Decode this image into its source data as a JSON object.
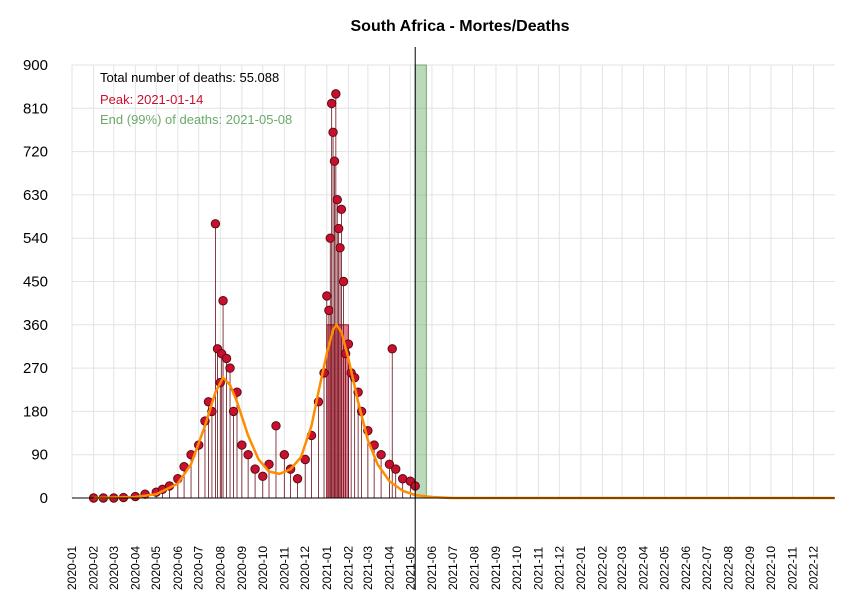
{
  "chart_data": {
    "type": "scatter",
    "title": "South Africa - Mortes/Deaths",
    "xlabel": "",
    "ylabel": "",
    "ylim": [
      0,
      900
    ],
    "xlim": [
      "2020-01-01",
      "2023-01-01"
    ],
    "y_ticks": [
      "0",
      "90",
      "180",
      "270",
      "360",
      "450",
      "540",
      "630",
      "720",
      "810",
      "900"
    ],
    "x_ticks": [
      "2020-01",
      "2020-02",
      "2020-03",
      "2020-04",
      "2020-05",
      "2020-06",
      "2020-07",
      "2020-08",
      "2020-09",
      "2020-10",
      "2020-11",
      "2020-12",
      "2021-01",
      "2021-02",
      "2021-03",
      "2021-04",
      "2021-05",
      "2021-06",
      "2021-07",
      "2021-08",
      "2021-09",
      "2021-10",
      "2021-11",
      "2021-12",
      "2022-01",
      "2022-02",
      "2022-03",
      "2022-04",
      "2022-05",
      "2022-06",
      "2022-07",
      "2022-08",
      "2022-09",
      "2022-10",
      "2022-11",
      "2022-12"
    ],
    "grid": true,
    "annotations": {
      "total": "Total number of deaths: 55.088",
      "peak": "Peak: 2021-01-14",
      "end": "End (99%) of deaths: 2021-05-08"
    },
    "vertical_line_date": "2021-05-08",
    "peak_band": [
      "2021-01-01",
      "2021-02-01"
    ],
    "peak_band_top": 360,
    "end_band": [
      "2021-05-08",
      "2021-05-24"
    ],
    "series": [
      {
        "type": "points",
        "color": "#c8102e",
        "x": [
          "2020-02-01",
          "2020-02-15",
          "2020-03-01",
          "2020-03-15",
          "2020-04-01",
          "2020-04-15",
          "2020-05-01",
          "2020-05-10",
          "2020-05-20",
          "2020-06-01",
          "2020-06-10",
          "2020-06-20",
          "2020-07-01",
          "2020-07-10",
          "2020-07-15",
          "2020-07-20",
          "2020-07-25",
          "2020-07-28",
          "2020-08-01",
          "2020-08-03",
          "2020-08-05",
          "2020-08-10",
          "2020-08-15",
          "2020-08-20",
          "2020-08-25",
          "2020-09-01",
          "2020-09-10",
          "2020-09-20",
          "2020-10-01",
          "2020-10-10",
          "2020-10-20",
          "2020-11-01",
          "2020-11-10",
          "2020-11-20",
          "2020-12-01",
          "2020-12-10",
          "2020-12-20",
          "2020-12-28",
          "2021-01-01",
          "2021-01-04",
          "2021-01-06",
          "2021-01-08",
          "2021-01-10",
          "2021-01-12",
          "2021-01-14",
          "2021-01-16",
          "2021-01-18",
          "2021-01-20",
          "2021-01-22",
          "2021-01-25",
          "2021-01-28",
          "2021-02-01",
          "2021-02-05",
          "2021-02-10",
          "2021-02-15",
          "2021-02-20",
          "2021-03-01",
          "2021-03-10",
          "2021-03-20",
          "2021-04-01",
          "2021-04-05",
          "2021-04-10",
          "2021-04-20",
          "2021-05-01",
          "2021-05-08"
        ],
        "y": [
          0,
          0,
          0,
          1,
          3,
          8,
          12,
          18,
          25,
          40,
          65,
          90,
          110,
          160,
          200,
          180,
          570,
          310,
          240,
          300,
          410,
          290,
          270,
          180,
          220,
          110,
          90,
          60,
          45,
          70,
          150,
          90,
          60,
          40,
          80,
          130,
          200,
          260,
          420,
          390,
          540,
          820,
          760,
          700,
          840,
          620,
          560,
          520,
          600,
          450,
          300,
          320,
          260,
          250,
          220,
          180,
          140,
          110,
          90,
          70,
          310,
          60,
          40,
          35,
          25
        ]
      },
      {
        "type": "fit",
        "color": "#ff8c00",
        "x": [
          "2020-02-01",
          "2020-04-01",
          "2020-05-01",
          "2020-06-01",
          "2020-06-20",
          "2020-07-10",
          "2020-07-25",
          "2020-08-05",
          "2020-08-15",
          "2020-08-25",
          "2020-09-10",
          "2020-09-25",
          "2020-10-10",
          "2020-10-25",
          "2020-11-10",
          "2020-11-25",
          "2020-12-10",
          "2020-12-20",
          "2021-01-01",
          "2021-01-10",
          "2021-01-15",
          "2021-01-22",
          "2021-02-01",
          "2021-02-15",
          "2021-03-01",
          "2021-03-15",
          "2021-04-01",
          "2021-04-20",
          "2021-05-08",
          "2021-06-01",
          "2021-07-01",
          "2021-08-01",
          "2022-12-31"
        ],
        "y": [
          0,
          2,
          8,
          30,
          70,
          150,
          220,
          250,
          235,
          200,
          130,
          80,
          55,
          50,
          60,
          85,
          150,
          220,
          300,
          350,
          360,
          345,
          290,
          200,
          120,
          70,
          35,
          15,
          6,
          2,
          0,
          0,
          0
        ]
      }
    ]
  }
}
